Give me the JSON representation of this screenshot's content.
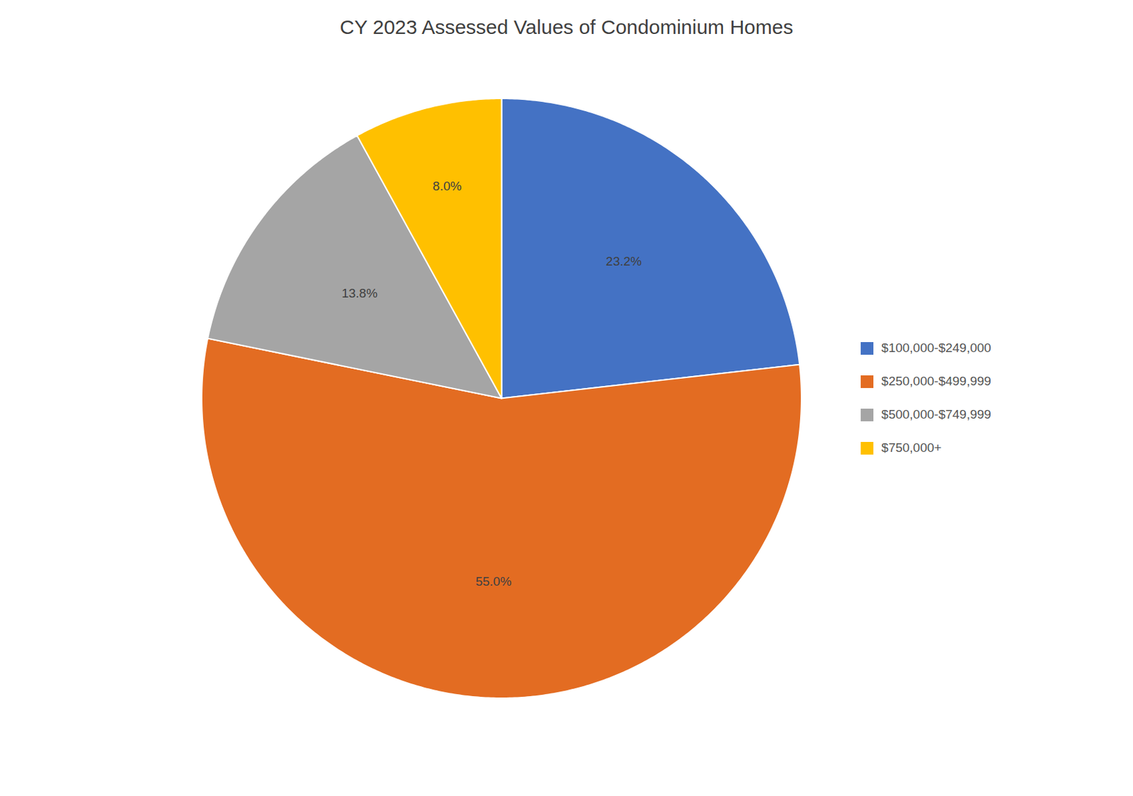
{
  "chart_data": {
    "type": "pie",
    "title": "CY 2023 Assessed Values of Condominium Homes",
    "categories": [
      "$100,000-$249,000",
      "$250,000-$499,999",
      "$500,000-$749,999",
      "$750,000+"
    ],
    "values": [
      23.2,
      55.0,
      13.8,
      8.0
    ],
    "value_labels": [
      "23.2%",
      "55.0%",
      "13.8%",
      "8.0%"
    ],
    "colors": [
      "#4472C4",
      "#E36C22",
      "#A5A5A5",
      "#FFC000"
    ],
    "data_labels": true,
    "legend": "right"
  }
}
